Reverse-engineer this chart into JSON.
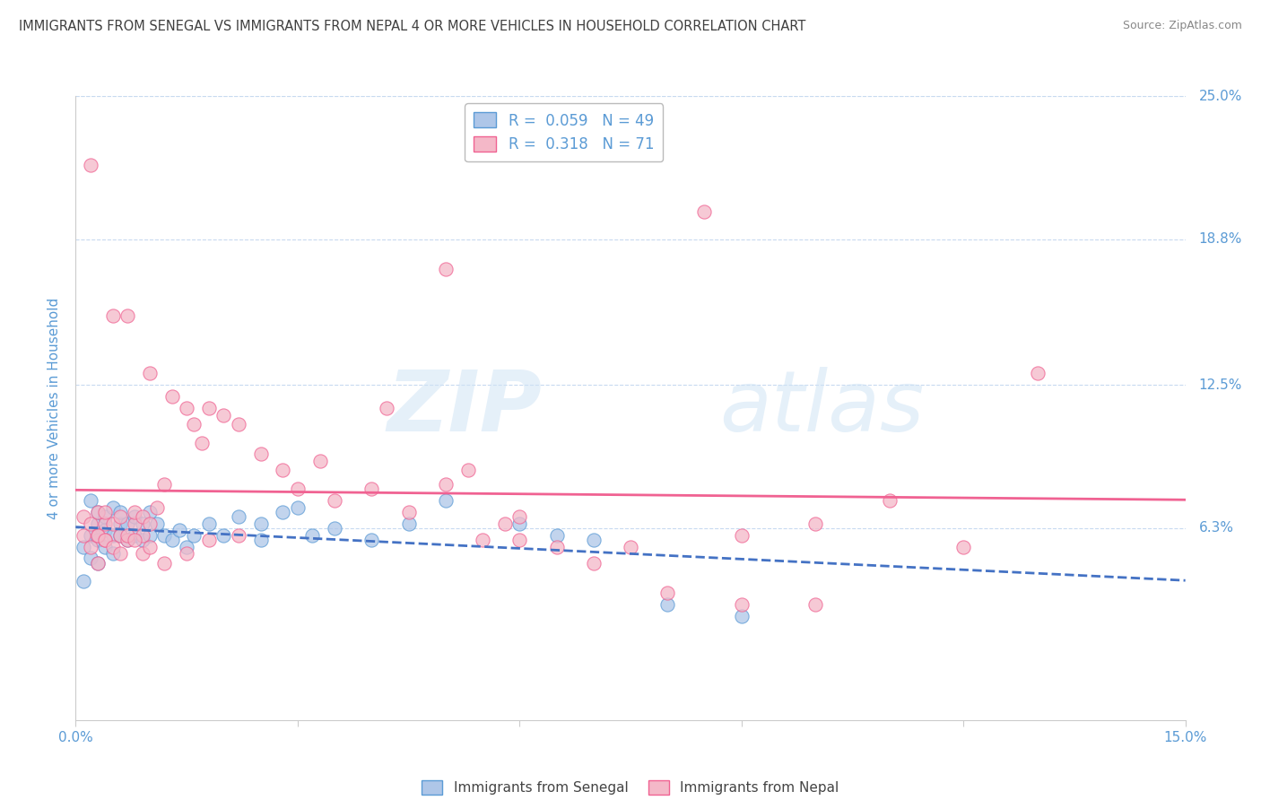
{
  "title": "IMMIGRANTS FROM SENEGAL VS IMMIGRANTS FROM NEPAL 4 OR MORE VEHICLES IN HOUSEHOLD CORRELATION CHART",
  "source": "Source: ZipAtlas.com",
  "ylabel": "4 or more Vehicles in Household",
  "x_min": 0.0,
  "x_max": 0.15,
  "y_min": -0.02,
  "y_max": 0.25,
  "x_ticks": [
    0.0,
    0.03,
    0.06,
    0.09,
    0.12,
    0.15
  ],
  "x_tick_labels": [
    "0.0%",
    "",
    "",
    "",
    "",
    "15.0%"
  ],
  "y_ticks_right": [
    0.063,
    0.125,
    0.188,
    0.25
  ],
  "y_tick_labels_right": [
    "6.3%",
    "12.5%",
    "18.8%",
    "25.0%"
  ],
  "senegal_fill_color": "#aec6e8",
  "senegal_edge_color": "#5b9bd5",
  "nepal_fill_color": "#f4b8c8",
  "nepal_edge_color": "#f06292",
  "senegal_line_color": "#4472c4",
  "nepal_line_color": "#f06292",
  "r_senegal": 0.059,
  "n_senegal": 49,
  "r_nepal": 0.318,
  "n_nepal": 71,
  "legend_label_senegal": "Immigrants from Senegal",
  "legend_label_nepal": "Immigrants from Nepal",
  "watermark_zip": "ZIP",
  "watermark_atlas": "atlas",
  "background_color": "#ffffff",
  "grid_color": "#c8daf0",
  "title_color": "#404040",
  "axis_label_color": "#5b9bd5",
  "tick_label_color": "#5b9bd5",
  "senegal_x": [
    0.001,
    0.001,
    0.002,
    0.002,
    0.002,
    0.003,
    0.003,
    0.003,
    0.003,
    0.004,
    0.004,
    0.004,
    0.005,
    0.005,
    0.005,
    0.006,
    0.006,
    0.006,
    0.007,
    0.007,
    0.008,
    0.008,
    0.009,
    0.009,
    0.01,
    0.01,
    0.011,
    0.012,
    0.013,
    0.014,
    0.015,
    0.016,
    0.018,
    0.02,
    0.022,
    0.025,
    0.025,
    0.028,
    0.03,
    0.032,
    0.035,
    0.04,
    0.045,
    0.05,
    0.06,
    0.065,
    0.07,
    0.08,
    0.09
  ],
  "senegal_y": [
    0.055,
    0.04,
    0.06,
    0.075,
    0.05,
    0.065,
    0.07,
    0.058,
    0.048,
    0.062,
    0.068,
    0.055,
    0.06,
    0.052,
    0.072,
    0.065,
    0.06,
    0.07,
    0.065,
    0.058,
    0.068,
    0.06,
    0.065,
    0.058,
    0.07,
    0.06,
    0.065,
    0.06,
    0.058,
    0.062,
    0.055,
    0.06,
    0.065,
    0.06,
    0.068,
    0.065,
    0.058,
    0.07,
    0.072,
    0.06,
    0.063,
    0.058,
    0.065,
    0.075,
    0.065,
    0.06,
    0.058,
    0.03,
    0.025
  ],
  "nepal_x": [
    0.001,
    0.001,
    0.002,
    0.002,
    0.002,
    0.003,
    0.003,
    0.003,
    0.004,
    0.004,
    0.004,
    0.005,
    0.005,
    0.006,
    0.006,
    0.007,
    0.007,
    0.008,
    0.008,
    0.009,
    0.009,
    0.01,
    0.01,
    0.011,
    0.012,
    0.013,
    0.015,
    0.016,
    0.017,
    0.018,
    0.02,
    0.022,
    0.025,
    0.028,
    0.03,
    0.033,
    0.035,
    0.04,
    0.042,
    0.045,
    0.05,
    0.053,
    0.058,
    0.06,
    0.065,
    0.07,
    0.075,
    0.08,
    0.09,
    0.1,
    0.003,
    0.004,
    0.005,
    0.006,
    0.007,
    0.008,
    0.009,
    0.01,
    0.012,
    0.015,
    0.018,
    0.022,
    0.05,
    0.055,
    0.06,
    0.085,
    0.09,
    0.1,
    0.11,
    0.12,
    0.13
  ],
  "nepal_y": [
    0.06,
    0.068,
    0.22,
    0.065,
    0.055,
    0.07,
    0.06,
    0.048,
    0.065,
    0.07,
    0.058,
    0.065,
    0.155,
    0.06,
    0.068,
    0.058,
    0.155,
    0.065,
    0.07,
    0.06,
    0.068,
    0.065,
    0.13,
    0.072,
    0.082,
    0.12,
    0.115,
    0.108,
    0.1,
    0.115,
    0.112,
    0.108,
    0.095,
    0.088,
    0.08,
    0.092,
    0.075,
    0.08,
    0.115,
    0.07,
    0.082,
    0.088,
    0.065,
    0.058,
    0.055,
    0.048,
    0.055,
    0.035,
    0.03,
    0.03,
    0.06,
    0.058,
    0.055,
    0.052,
    0.06,
    0.058,
    0.052,
    0.055,
    0.048,
    0.052,
    0.058,
    0.06,
    0.175,
    0.058,
    0.068,
    0.2,
    0.06,
    0.065,
    0.075,
    0.055,
    0.13
  ]
}
